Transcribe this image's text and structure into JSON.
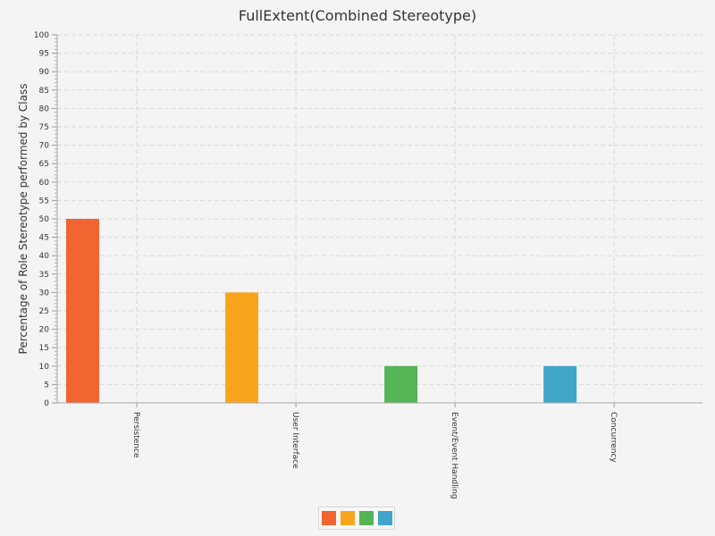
{
  "chart_data": {
    "type": "bar",
    "title": "FullExtent(Combined Stereotype)",
    "xlabel": "",
    "ylabel": "Percentage of Role Stereotype performed by Class",
    "categories": [
      "Persistence",
      "User Interface",
      "Event/Event Handling",
      "Concurrency"
    ],
    "values": [
      50,
      30,
      10,
      10
    ],
    "colors": [
      "#f26430",
      "#f9a51b",
      "#55b455",
      "#3fa6c9"
    ],
    "ylim": [
      0,
      100
    ],
    "y_major_step": 5,
    "y_minor_step": 1,
    "grid": true,
    "legend": {
      "placement": "bottom-center",
      "entries": [
        "",
        "",
        "",
        ""
      ]
    }
  }
}
